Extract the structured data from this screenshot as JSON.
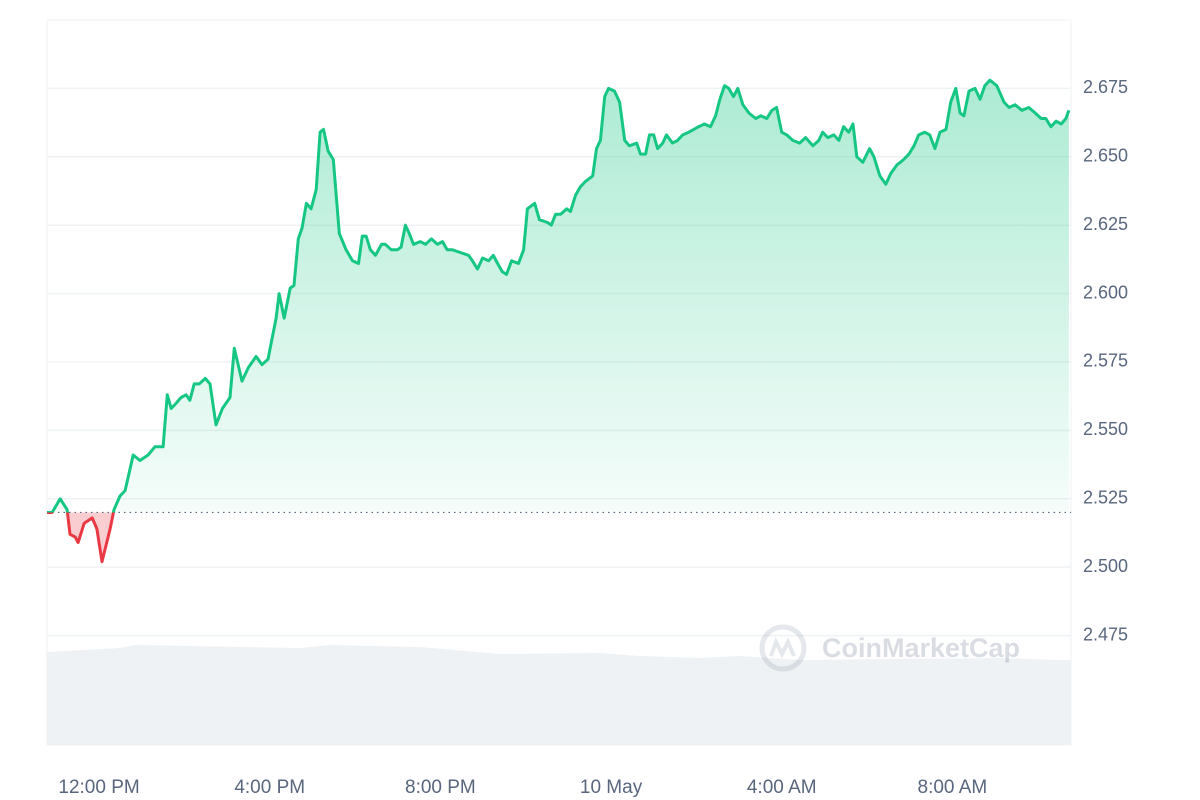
{
  "chart_data": {
    "type": "line",
    "watermark": "CoinMarketCap",
    "baseline": 2.52,
    "color_up": "#16c784",
    "color_down": "#ea3943",
    "x": [
      -1.22,
      -1.1,
      -0.91,
      -0.75,
      -0.68,
      -0.56,
      -0.49,
      -0.35,
      -0.16,
      -0.05,
      0.07,
      0.26,
      0.35,
      0.49,
      0.61,
      0.8,
      0.96,
      1.15,
      1.31,
      1.5,
      1.6,
      1.69,
      1.81,
      1.92,
      2.04,
      2.13,
      2.23,
      2.35,
      2.49,
      2.6,
      2.74,
      2.89,
      3.07,
      3.17,
      3.35,
      3.5,
      3.68,
      3.82,
      3.96,
      4.15,
      4.22,
      4.34,
      4.48,
      4.57,
      4.67,
      4.76,
      4.86,
      4.97,
      5.09,
      5.18,
      5.26,
      5.37,
      5.49,
      5.63,
      5.79,
      5.94,
      6.08,
      6.17,
      6.26,
      6.36,
      6.48,
      6.62,
      6.71,
      6.85,
      6.99,
      7.08,
      7.18,
      7.27,
      7.37,
      7.53,
      7.65,
      7.79,
      7.93,
      8.05,
      8.16,
      8.28,
      8.47,
      8.66,
      8.75,
      8.87,
      8.99,
      9.13,
      9.24,
      9.34,
      9.45,
      9.55,
      9.67,
      9.83,
      9.95,
      10.04,
      10.21,
      10.32,
      10.51,
      10.6,
      10.7,
      10.82,
      10.96,
      11.05,
      11.17,
      11.28,
      11.4,
      11.57,
      11.66,
      11.75,
      11.85,
      11.94,
      12.08,
      12.2,
      12.32,
      12.43,
      12.6,
      12.69,
      12.81,
      12.9,
      13.0,
      13.09,
      13.21,
      13.3,
      13.44,
      13.56,
      13.68,
      13.82,
      13.94,
      14.05,
      14.19,
      14.33,
      14.45,
      14.55,
      14.66,
      14.76,
      14.87,
      14.97,
      15.09,
      15.23,
      15.39,
      15.51,
      15.65,
      15.77,
      15.88,
      16.0,
      16.12,
      16.26,
      16.42,
      16.56,
      16.73,
      16.87,
      16.96,
      17.08,
      17.22,
      17.34,
      17.45,
      17.57,
      17.67,
      17.76,
      17.9,
      18.06,
      18.16,
      18.3,
      18.44,
      18.56,
      18.7,
      18.86,
      18.98,
      19.1,
      19.21,
      19.35,
      19.47,
      19.59,
      19.71,
      19.85,
      19.96,
      20.08,
      20.18,
      20.27,
      20.39,
      20.53,
      20.65,
      20.76,
      20.88,
      21.04,
      21.21,
      21.33,
      21.47,
      21.63,
      21.79,
      21.94,
      22.08,
      22.19,
      22.31,
      22.43,
      22.55,
      22.66,
      22.73
    ],
    "values": [
      2.52,
      2.52,
      2.525,
      2.521,
      2.512,
      2.511,
      2.509,
      2.516,
      2.518,
      2.514,
      2.502,
      2.514,
      2.521,
      2.526,
      2.528,
      2.541,
      2.539,
      2.541,
      2.544,
      2.544,
      2.563,
      2.558,
      2.56,
      2.562,
      2.563,
      2.561,
      2.567,
      2.567,
      2.569,
      2.567,
      2.552,
      2.558,
      2.562,
      2.58,
      2.568,
      2.573,
      2.577,
      2.574,
      2.576,
      2.591,
      2.6,
      2.591,
      2.602,
      2.603,
      2.62,
      2.624,
      2.633,
      2.631,
      2.638,
      2.659,
      2.66,
      2.652,
      2.649,
      2.622,
      2.616,
      2.612,
      2.611,
      2.621,
      2.621,
      2.616,
      2.614,
      2.618,
      2.618,
      2.616,
      2.616,
      2.617,
      2.625,
      2.622,
      2.618,
      2.619,
      2.618,
      2.62,
      2.618,
      2.619,
      2.616,
      2.616,
      2.615,
      2.614,
      2.612,
      2.609,
      2.613,
      2.612,
      2.614,
      2.611,
      2.608,
      2.607,
      2.612,
      2.611,
      2.616,
      2.631,
      2.633,
      2.627,
      2.626,
      2.625,
      2.629,
      2.629,
      2.631,
      2.63,
      2.636,
      2.639,
      2.641,
      2.643,
      2.653,
      2.656,
      2.672,
      2.675,
      2.674,
      2.67,
      2.656,
      2.654,
      2.655,
      2.651,
      2.651,
      2.658,
      2.658,
      2.653,
      2.655,
      2.658,
      2.655,
      2.656,
      2.658,
      2.659,
      2.66,
      2.661,
      2.662,
      2.661,
      2.665,
      2.671,
      2.676,
      2.675,
      2.672,
      2.675,
      2.669,
      2.666,
      2.664,
      2.665,
      2.664,
      2.667,
      2.668,
      2.659,
      2.658,
      2.656,
      2.655,
      2.657,
      2.654,
      2.656,
      2.659,
      2.657,
      2.658,
      2.656,
      2.661,
      2.659,
      2.662,
      2.65,
      2.648,
      2.653,
      2.65,
      2.643,
      2.64,
      2.644,
      2.647,
      2.649,
      2.651,
      2.654,
      2.658,
      2.659,
      2.658,
      2.653,
      2.659,
      2.66,
      2.67,
      2.675,
      2.666,
      2.665,
      2.674,
      2.675,
      2.671,
      2.676,
      2.678,
      2.676,
      2.67,
      2.668,
      2.669,
      2.667,
      2.668,
      2.666,
      2.664,
      2.664,
      2.661,
      2.663,
      2.662,
      2.664,
      2.667
    ],
    "xlim": [
      -1.22,
      22.78
    ],
    "xticks": [
      {
        "value": 0,
        "label": "12:00 PM"
      },
      {
        "value": 4,
        "label": "4:00 PM"
      },
      {
        "value": 8,
        "label": "8:00 PM"
      },
      {
        "value": 12,
        "label": "10 May"
      },
      {
        "value": 16,
        "label": "4:00 AM"
      },
      {
        "value": 20,
        "label": "8:00 AM"
      }
    ],
    "ylim": [
      2.435,
      2.7
    ],
    "yticks": [
      2.475,
      {
        "value": 2.5,
        "label": "2.500"
      },
      2.525,
      {
        "value": 2.55,
        "label": "2.550"
      },
      2.575,
      {
        "value": 2.6,
        "label": "2.600"
      },
      2.625,
      {
        "value": 2.65,
        "label": "2.650"
      },
      2.675
    ],
    "grid": true
  }
}
